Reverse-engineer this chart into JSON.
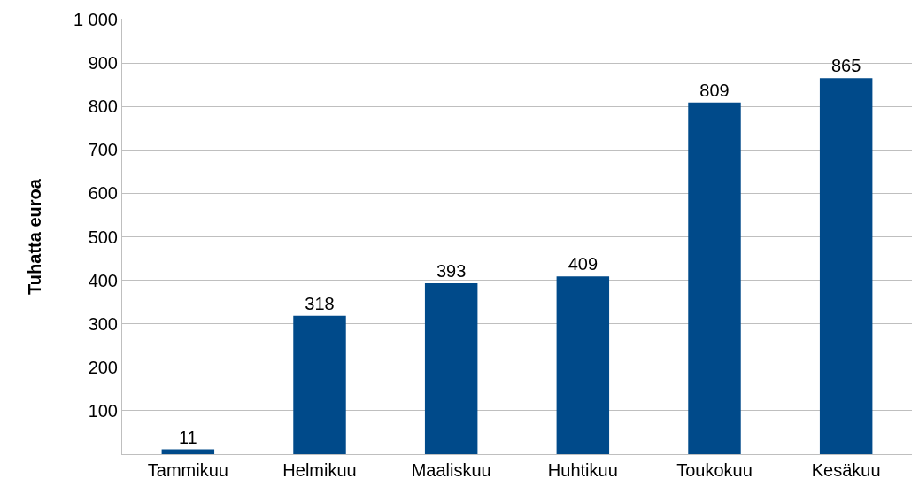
{
  "chart_data": {
    "type": "bar",
    "ylabel": "Tuhatta euroa",
    "categories": [
      "Tammikuu",
      "Helmikuu",
      "Maaliskuu",
      "Huhtikuu",
      "Toukokuu",
      "Kesäkuu"
    ],
    "values": [
      11,
      318,
      393,
      409,
      809,
      865
    ],
    "color": "#004a8a",
    "ylim": [
      0,
      1000
    ],
    "yticks": [
      100,
      200,
      300,
      400,
      500,
      600,
      700,
      800,
      900,
      {
        "value": 1000,
        "label": "1 000"
      }
    ],
    "grid": "y",
    "data_labels": true
  }
}
